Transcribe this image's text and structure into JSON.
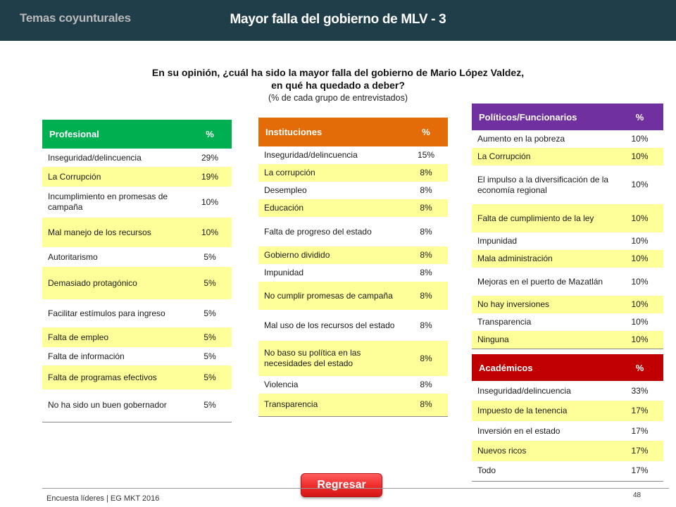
{
  "header": {
    "section": "Temas coyunturales",
    "title": "Mayor falla del gobierno de MLV - 3"
  },
  "question": {
    "line1": "En su opinión, ¿cuál ha sido la mayor falla del gobierno de Mario López Valdez,",
    "line2": "en qué ha quedado a deber?",
    "sub": "(% de cada grupo de entrevistados)"
  },
  "colors": {
    "header_bg": "#1f3e4a",
    "profesional": "#00b050",
    "instituciones": "#e36c09",
    "politicos": "#7030a0",
    "academicos": "#c00000",
    "highlight": "#ffff99"
  },
  "tables": {
    "profesional": {
      "header": "Profesional",
      "pct_header": "%",
      "rows": [
        {
          "label": "Inseguridad/delincuencia",
          "value": "29%"
        },
        {
          "label": "La Corrupción",
          "value": "19%"
        },
        {
          "label": "Incumplimiento en promesas de campaña",
          "value": "10%"
        },
        {
          "label": "Mal manejo de los recursos",
          "value": "10%"
        },
        {
          "label": "Autoritarismo",
          "value": "5%"
        },
        {
          "label": "Demasiado protagónico",
          "value": "5%"
        },
        {
          "label": "Facilitar estímulos para ingreso",
          "value": "5%"
        },
        {
          "label": "Falta de empleo",
          "value": "5%"
        },
        {
          "label": "Falta de información",
          "value": "5%"
        },
        {
          "label": "Falta de programas efectivos",
          "value": "5%"
        },
        {
          "label": "No ha sido un buen gobernador",
          "value": "5%"
        }
      ]
    },
    "instituciones": {
      "header": "Instituciones",
      "pct_header": "%",
      "rows": [
        {
          "label": "Inseguridad/delincuencia",
          "value": "15%"
        },
        {
          "label": "La corrupción",
          "value": "8%"
        },
        {
          "label": "Desempleo",
          "value": "8%"
        },
        {
          "label": "Educación",
          "value": "8%"
        },
        {
          "label": "Falta de progreso del estado",
          "value": "8%"
        },
        {
          "label": "Gobierno dividido",
          "value": "8%"
        },
        {
          "label": "Impunidad",
          "value": "8%"
        },
        {
          "label": "No cumplir promesas de campaña",
          "value": "8%"
        },
        {
          "label": "Mal uso de los recursos del estado",
          "value": "8%"
        },
        {
          "label": "No baso su política en las necesidades del estado",
          "value": "8%"
        },
        {
          "label": "Violencia",
          "value": "8%"
        },
        {
          "label": "Transparencia",
          "value": "8%"
        }
      ]
    },
    "politicos": {
      "header": "Políticos/Funcionarios",
      "pct_header": "%",
      "rows": [
        {
          "label": "Aumento en la pobreza",
          "value": "10%"
        },
        {
          "label": "La Corrupción",
          "value": "10%"
        },
        {
          "label": "El impulso a la diversificación de la economía regional",
          "value": "10%"
        },
        {
          "label": "Falta de cumplimiento de la ley",
          "value": "10%"
        },
        {
          "label": "Impunidad",
          "value": "10%"
        },
        {
          "label": "Mala administración",
          "value": "10%"
        },
        {
          "label": "Mejoras en el puerto de Mazatlán",
          "value": "10%"
        },
        {
          "label": "No hay inversiones",
          "value": "10%"
        },
        {
          "label": "Transparencia",
          "value": "10%"
        },
        {
          "label": "Ninguna",
          "value": "10%"
        }
      ]
    },
    "academicos": {
      "header": "Académicos",
      "pct_header": "%",
      "rows": [
        {
          "label": "Inseguridad/delincuencia",
          "value": "33%"
        },
        {
          "label": "Impuesto de la tenencia",
          "value": "17%"
        },
        {
          "label": "Inversión en el estado",
          "value": "17%"
        },
        {
          "label": "Nuevos ricos",
          "value": "17%"
        },
        {
          "label": "Todo",
          "value": "17%"
        }
      ]
    }
  },
  "footer": {
    "source": "Encuesta líderes | EG MKT 2016",
    "page": "48",
    "back_button": "Regresar"
  }
}
